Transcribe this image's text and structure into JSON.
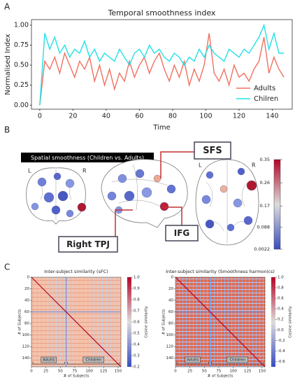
{
  "panels": [
    "A",
    "B",
    "C"
  ],
  "chart_data": [
    {
      "type": "line",
      "title": "Temporal smoothness index",
      "xlabel": "Time",
      "ylabel": "Normalised Index",
      "x": [
        0,
        3,
        6,
        9,
        12,
        15,
        18,
        21,
        24,
        27,
        30,
        33,
        36,
        39,
        42,
        45,
        48,
        51,
        54,
        57,
        60,
        63,
        66,
        69,
        72,
        75,
        78,
        81,
        84,
        87,
        90,
        93,
        96,
        99,
        102,
        105,
        108,
        111,
        114,
        117,
        120,
        123,
        126,
        129,
        132,
        135,
        138,
        141,
        144,
        147
      ],
      "series": [
        {
          "name": "Adults",
          "color": "#f07060",
          "values": [
            0,
            0.55,
            0.45,
            0.6,
            0.4,
            0.65,
            0.5,
            0.35,
            0.55,
            0.45,
            0.6,
            0.3,
            0.5,
            0.25,
            0.45,
            0.2,
            0.4,
            0.3,
            0.55,
            0.35,
            0.5,
            0.6,
            0.4,
            0.55,
            0.65,
            0.45,
            0.3,
            0.5,
            0.35,
            0.55,
            0.25,
            0.45,
            0.3,
            0.5,
            0.9,
            0.4,
            0.3,
            0.45,
            0.25,
            0.5,
            0.35,
            0.4,
            0.3,
            0.45,
            0.55,
            0.85,
            0.4,
            0.6,
            0.45,
            0.35
          ]
        },
        {
          "name": "Chilren",
          "color": "#22e0e8",
          "values": [
            0,
            0.9,
            0.7,
            0.85,
            0.65,
            0.75,
            0.6,
            0.7,
            0.65,
            0.8,
            0.6,
            0.7,
            0.55,
            0.65,
            0.6,
            0.55,
            0.7,
            0.6,
            0.5,
            0.65,
            0.7,
            0.6,
            0.75,
            0.65,
            0.7,
            0.6,
            0.55,
            0.65,
            0.6,
            0.5,
            0.6,
            0.55,
            0.7,
            0.6,
            0.75,
            0.65,
            0.6,
            0.55,
            0.7,
            0.65,
            0.6,
            0.7,
            0.65,
            0.75,
            0.85,
            1.0,
            0.7,
            0.9,
            0.65,
            0.65
          ]
        }
      ],
      "xlim": [
        -5,
        152
      ],
      "ylim": [
        -0.05,
        1.07
      ],
      "xticks": [
        0,
        20,
        40,
        60,
        80,
        100,
        120,
        140
      ],
      "yticks": [
        {
          "value": 0,
          "label": "0.00"
        },
        {
          "value": 0.25,
          "label": "0.25"
        },
        {
          "value": 0.5,
          "label": "0.50"
        },
        {
          "value": 0.75,
          "label": "0.75"
        },
        {
          "value": 1,
          "label": "1.00"
        }
      ],
      "legend": "lower right"
    },
    {
      "type": "heatmap",
      "title": "Inter-subject similarity (sFC)",
      "xlabel": "# of Subjects",
      "ylabel": "# of Subjects",
      "colorbar_label": "Cosine similarity",
      "xlim": [
        0,
        155
      ],
      "ylim": [
        0,
        155
      ],
      "xticks": [
        0,
        25,
        50,
        75,
        100,
        125,
        150
      ],
      "yticks": [
        0,
        20,
        40,
        60,
        80,
        100,
        120,
        140
      ],
      "clim": [
        0.2,
        1.0
      ],
      "cticks": [
        0.2,
        0.3,
        0.4,
        0.5,
        0.6,
        0.7,
        0.8,
        0.9,
        {
          "value": 1,
          "label": "1.0"
        }
      ],
      "groups": [
        "Adults",
        "Children"
      ]
    },
    {
      "type": "heatmap",
      "title": "Inter-subject similarity (Smoothness harmonics)",
      "xlabel": "# of Subjects",
      "ylabel": "# of Subjects",
      "colorbar_label": "Cosine similarity",
      "xlim": [
        0,
        155
      ],
      "ylim": [
        0,
        155
      ],
      "xticks": [
        0,
        25,
        50,
        75,
        100,
        125,
        150
      ],
      "yticks": [
        0,
        20,
        40,
        60,
        80,
        100,
        120,
        140
      ],
      "clim": [
        -0.7,
        1.0
      ],
      "cticks": [
        -0.6,
        -0.4,
        -0.2,
        {
          "value": 0,
          "label": "0.0"
        },
        0.2,
        0.4,
        0.6,
        0.8,
        {
          "value": 1,
          "label": "1.0"
        }
      ],
      "groups": [
        "Adults",
        "Children"
      ]
    }
  ],
  "brain": {
    "title": "Spatial smoothness (Children vs. Adults)",
    "regions": [
      "SFS",
      "IFG",
      "Right TPJ"
    ],
    "sides": [
      "L",
      "R",
      "L",
      "R"
    ],
    "clim": [
      0.0022,
      0.35
    ],
    "cticks": [
      0.35,
      0.26,
      0.17,
      0.088,
      0.0022
    ]
  }
}
